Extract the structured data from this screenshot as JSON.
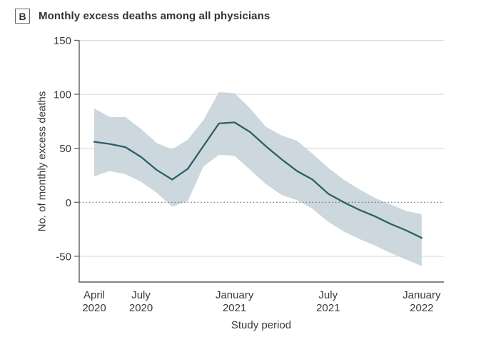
{
  "panel": {
    "label": "B",
    "title": "Monthly excess deaths among all physicians"
  },
  "chart_data": {
    "type": "line",
    "title": "Monthly excess deaths among all physicians",
    "xlabel": "Study period",
    "ylabel": "No. of monthly excess deaths",
    "ylim": [
      -74,
      150
    ],
    "yticks": [
      150,
      100,
      50,
      0,
      -50
    ],
    "grid": "horizontal-only",
    "zero_reference_line": "dotted",
    "legend": "none",
    "months": [
      "April 2020",
      "May 2020",
      "June 2020",
      "July 2020",
      "August 2020",
      "September 2020",
      "October 2020",
      "November 2020",
      "December 2020",
      "January 2021",
      "February 2021",
      "March 2021",
      "April 2021",
      "May 2021",
      "June 2021",
      "July 2021",
      "August 2021",
      "September 2021",
      "October 2021",
      "November 2021",
      "December 2021",
      "January 2022"
    ],
    "x_tick_labels": [
      {
        "month": "April",
        "year": "2020",
        "month_index": 0
      },
      {
        "month": "July",
        "year": "2020",
        "month_index": 3
      },
      {
        "month": "January",
        "year": "2021",
        "month_index": 9
      },
      {
        "month": "July",
        "year": "2021",
        "month_index": 15
      },
      {
        "month": "January",
        "year": "2022",
        "month_index": 21
      }
    ],
    "series": [
      {
        "id": "point",
        "name": "Monthly excess deaths (point estimate)",
        "values": [
          56,
          54,
          51,
          42,
          30,
          21,
          31,
          52,
          73,
          74,
          65,
          52,
          40,
          29,
          21,
          8,
          0,
          -7,
          -13,
          -20,
          -26,
          -33
        ]
      },
      {
        "id": "upper",
        "name": "95% CI upper bound",
        "values": [
          87,
          79,
          79,
          68,
          55,
          49,
          58,
          76,
          102,
          101,
          87,
          70,
          62,
          57,
          45,
          32,
          21,
          12,
          4,
          -2,
          -8,
          -11
        ]
      },
      {
        "id": "lower",
        "name": "95% CI lower bound",
        "values": [
          24,
          29,
          26,
          19,
          9,
          -4,
          1,
          33,
          44,
          43,
          30,
          17,
          7,
          2,
          -6,
          -18,
          -27,
          -34,
          -40,
          -47,
          -53,
          -59
        ]
      }
    ],
    "colors": {
      "line": "#2e5e69",
      "band": "#c4d0d8",
      "grid": "#d9d9d9",
      "zero_line": "#6e6e6e",
      "axis": "#5c5c5c",
      "text": "#3a3a3a",
      "title": "#2c353d"
    }
  }
}
